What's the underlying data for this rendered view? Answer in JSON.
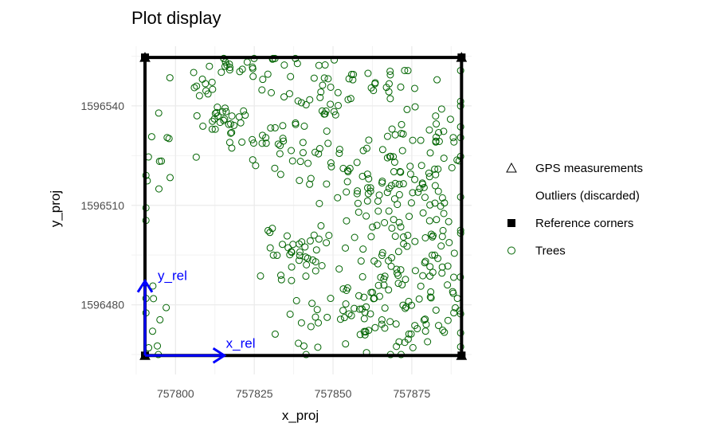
{
  "chart_data": {
    "type": "scatter",
    "title": "Plot display",
    "xlabel": "x_proj",
    "ylabel": "y_proj",
    "xlim": [
      757786,
      757894
    ],
    "ylim": [
      1596459,
      1596558
    ],
    "x_ticks": [
      757800,
      757825,
      757850,
      757875
    ],
    "x_tick_labels": [
      "757800",
      "757825",
      "757850",
      "757875"
    ],
    "y_ticks": [
      1596480,
      1596510,
      1596540
    ],
    "y_tick_labels": [
      "1596480",
      "1596510",
      "1596540"
    ],
    "grid": true,
    "legend_position": "right",
    "legend": [
      {
        "label": "GPS measurements",
        "symbol": "open-triangle"
      },
      {
        "label": "Outliers (discarded)",
        "symbol": "none"
      },
      {
        "label": "Reference corners",
        "symbol": "filled-square"
      },
      {
        "label": "Trees",
        "symbol": "open-circle",
        "color": "#006400"
      }
    ],
    "plot_outline": {
      "color": "#000000",
      "corners": [
        [
          757790.3,
          1596464.7
        ],
        [
          757790.3,
          1596554.6
        ],
        [
          757890.8,
          1596554.6
        ],
        [
          757890.8,
          1596464.7
        ]
      ]
    },
    "reference_corners": [
      [
        757790.3,
        1596464.7
      ],
      [
        757790.3,
        1596554.6
      ],
      [
        757890.8,
        1596554.6
      ],
      [
        757890.8,
        1596464.7
      ]
    ],
    "gps_measurements": [
      [
        757790.3,
        1596464.7
      ],
      [
        757790.3,
        1596554.6
      ],
      [
        757890.8,
        1596554.6
      ],
      [
        757890.8,
        1596464.7
      ]
    ],
    "relative_axes": {
      "color": "#0000ff",
      "origin": [
        757790.3,
        1596464.7
      ],
      "x_end": [
        757815.5,
        1596464.7
      ],
      "y_end": [
        757790.3,
        1596487.2
      ],
      "x_label": "x_rel",
      "y_label": "y_rel"
    },
    "tree_color": "#006400",
    "tree_clusters": [
      {
        "center": [
          757808,
          1596547
        ],
        "spread": [
          7,
          3
        ],
        "count": 14
      },
      {
        "center": [
          757816,
          1596536
        ],
        "spread": [
          5,
          2.5
        ],
        "count": 26
      },
      {
        "center": [
          757826,
          1596552
        ],
        "spread": [
          8,
          2.5
        ],
        "count": 20
      },
      {
        "center": [
          757845,
          1596546
        ],
        "spread": [
          8,
          5
        ],
        "count": 30
      },
      {
        "center": [
          757865,
          1596547
        ],
        "spread": [
          10,
          4
        ],
        "count": 18
      },
      {
        "center": [
          757795,
          1596523
        ],
        "spread": [
          5,
          10
        ],
        "count": 14
      },
      {
        "center": [
          757828,
          1596528
        ],
        "spread": [
          7,
          5
        ],
        "count": 22
      },
      {
        "center": [
          757845,
          1596527
        ],
        "spread": [
          5,
          8
        ],
        "count": 22
      },
      {
        "center": [
          757868,
          1596518
        ],
        "spread": [
          9,
          9
        ],
        "count": 85
      },
      {
        "center": [
          757884,
          1596532
        ],
        "spread": [
          5,
          8
        ],
        "count": 22
      },
      {
        "center": [
          757844,
          1596498
        ],
        "spread": [
          4,
          6
        ],
        "count": 22
      },
      {
        "center": [
          757830,
          1596495
        ],
        "spread": [
          3,
          4
        ],
        "count": 8
      },
      {
        "center": [
          757873,
          1596495
        ],
        "spread": [
          10,
          9
        ],
        "count": 65
      },
      {
        "center": [
          757860,
          1596478
        ],
        "spread": [
          9,
          6
        ],
        "count": 35
      },
      {
        "center": [
          757879,
          1596473
        ],
        "spread": [
          9,
          5
        ],
        "count": 32
      },
      {
        "center": [
          757848,
          1596474
        ],
        "spread": [
          7,
          4
        ],
        "count": 18
      },
      {
        "center": [
          757794,
          1596473
        ],
        "spread": [
          3,
          6
        ],
        "count": 10
      },
      {
        "center": [
          757884,
          1596505
        ],
        "spread": [
          5,
          15
        ],
        "count": 22
      },
      {
        "center": [
          757840,
          1596488
        ],
        "spread": [
          6,
          4
        ],
        "count": 10
      }
    ]
  }
}
